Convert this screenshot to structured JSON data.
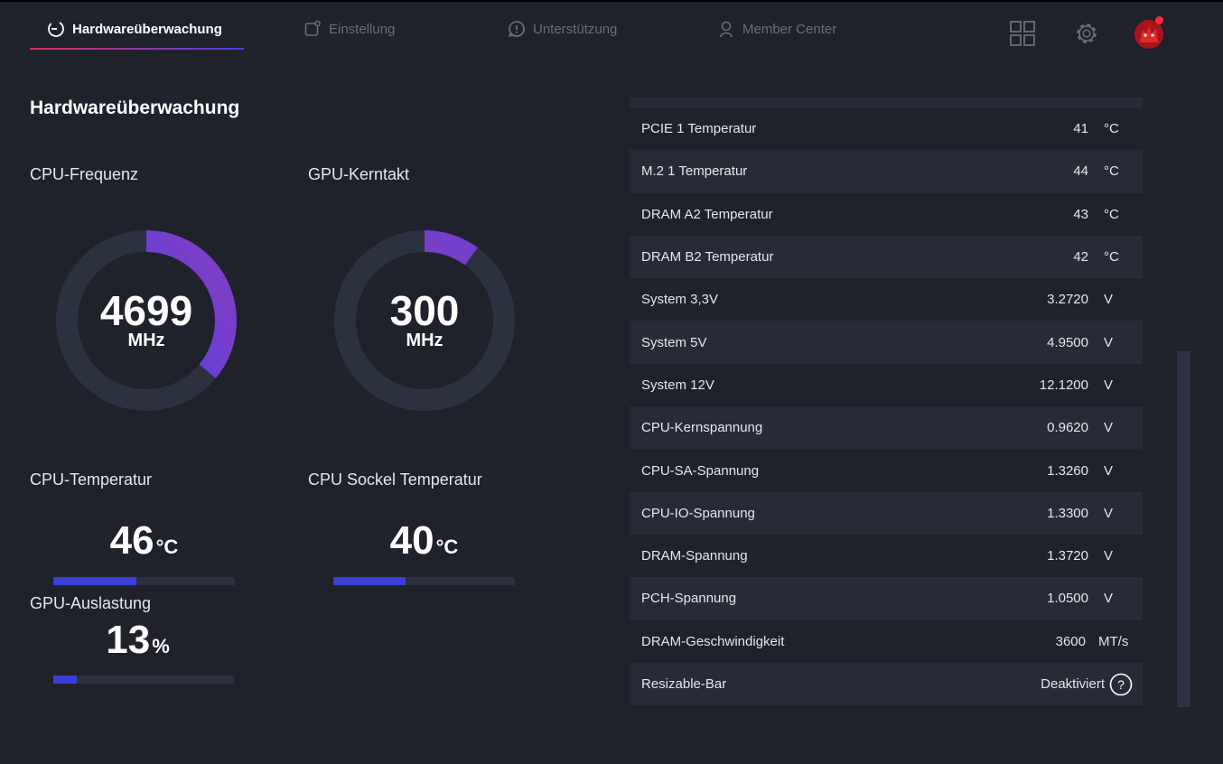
{
  "tabs": [
    {
      "label": "Hardwareüberwachung",
      "icon": "monitor-gauge-icon",
      "active": true
    },
    {
      "label": "Einstellung",
      "icon": "settings-square-icon",
      "active": false
    },
    {
      "label": "Unterstützung",
      "icon": "support-alert-icon",
      "active": false
    },
    {
      "label": "Member Center",
      "icon": "user-icon",
      "active": false
    }
  ],
  "page_title": "Hardwareüberwachung",
  "gauges": {
    "cpu_freq": {
      "label": "CPU-Frequenz",
      "value": "4699",
      "unit": "MHz",
      "fraction": 0.36
    },
    "gpu_clock": {
      "label": "GPU-Kerntakt",
      "value": "300",
      "unit": "MHz",
      "fraction": 0.1
    }
  },
  "temps": {
    "cpu_temp": {
      "label": "CPU-Temperatur",
      "value": "46",
      "unit": "°C",
      "fraction": 0.46
    },
    "socket_temp": {
      "label": "CPU Sockel Temperatur",
      "value": "40",
      "unit": "°C",
      "fraction": 0.4
    },
    "gpu_load": {
      "label": "GPU-Auslastung",
      "value": "13",
      "unit": "%",
      "fraction": 0.13
    }
  },
  "sensors": [
    {
      "name": "PCIE 1 Temperatur",
      "value": "41",
      "unit": "°C"
    },
    {
      "name": "M.2 1 Temperatur",
      "value": "44",
      "unit": "°C"
    },
    {
      "name": "DRAM A2 Temperatur",
      "value": "43",
      "unit": "°C"
    },
    {
      "name": "DRAM B2 Temperatur",
      "value": "42",
      "unit": "°C"
    },
    {
      "name": "System 3,3V",
      "value": "3.2720",
      "unit": "V"
    },
    {
      "name": "System 5V",
      "value": "4.9500",
      "unit": "V"
    },
    {
      "name": "System 12V",
      "value": "12.1200",
      "unit": "V"
    },
    {
      "name": "CPU-Kernspannung",
      "value": "0.9620",
      "unit": "V"
    },
    {
      "name": "CPU-SA-Spannung",
      "value": "1.3260",
      "unit": "V"
    },
    {
      "name": "CPU-IO-Spannung",
      "value": "1.3300",
      "unit": "V"
    },
    {
      "name": "DRAM-Spannung",
      "value": "1.3720",
      "unit": "V"
    },
    {
      "name": "PCH-Spannung",
      "value": "1.0500",
      "unit": "V"
    },
    {
      "name": "DRAM-Geschwindigkeit",
      "value": "3600",
      "unit": "MT/s"
    }
  ],
  "resizable_bar": {
    "name": "Resizable-Bar",
    "status": "Deaktiviert",
    "help": "?"
  },
  "colors": {
    "background": "#1f212b",
    "row_alt": "#282b37",
    "accent_start": "#d8325a",
    "accent_end": "#4b3fe0",
    "bar_fill": "#3a3fd8",
    "notification": "#ff2a3a"
  }
}
